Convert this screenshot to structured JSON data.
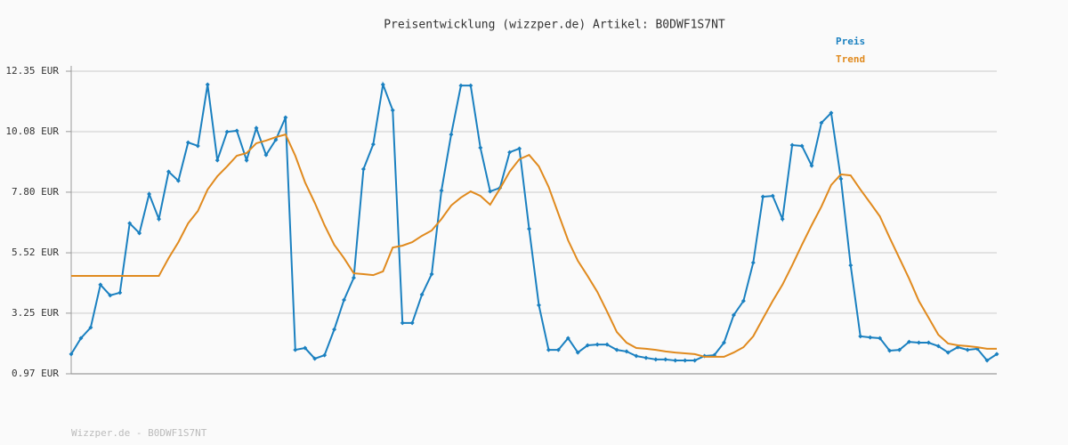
{
  "chart_data": {
    "type": "line",
    "title": "Preisentwicklung (wizzper.de) Artikel: B0DWF1S7NT",
    "footer": "Wizzper.de - B0DWF1S7NT",
    "categories": [
      null,
      null,
      null,
      null,
      null,
      null,
      null,
      null,
      null,
      null,
      null,
      null,
      null,
      null,
      null,
      null,
      null,
      null,
      null,
      null,
      null,
      null,
      null,
      null,
      null,
      null,
      null,
      null,
      null,
      null,
      null,
      null,
      null,
      null,
      null,
      null,
      null,
      null,
      null,
      null,
      null,
      null,
      null,
      null,
      null,
      null,
      null,
      null,
      null,
      null,
      null,
      null,
      null,
      null,
      null,
      null,
      null,
      null,
      null,
      null,
      null,
      null,
      null,
      null,
      null,
      null,
      null,
      null,
      null,
      null,
      null,
      null,
      null,
      null,
      null,
      null,
      null,
      null,
      null,
      null,
      null,
      null,
      null,
      null,
      null,
      null,
      null,
      null,
      null,
      null,
      null,
      null,
      null,
      null,
      null,
      null
    ],
    "ylim": [
      0.97,
      12.35
    ],
    "yticks": [
      {
        "value": 0.97,
        "label": "0.97 EUR"
      },
      {
        "value": 3.25,
        "label": "3.25 EUR"
      },
      {
        "value": 5.52,
        "label": "5.52 EUR"
      },
      {
        "value": 7.8,
        "label": "7.80 EUR"
      },
      {
        "value": 10.08,
        "label": "10.08 EUR"
      },
      {
        "value": 12.35,
        "label": "12.35 EUR"
      }
    ],
    "grid": true,
    "legend": "top-right",
    "series": [
      {
        "name": "Preis",
        "color": "#1a80c0",
        "markers": true,
        "values": [
          1.71,
          2.31,
          2.71,
          4.32,
          3.92,
          4.02,
          6.63,
          6.26,
          7.73,
          6.79,
          8.57,
          8.23,
          9.67,
          9.54,
          11.85,
          9.0,
          10.07,
          10.11,
          9.0,
          10.21,
          9.2,
          9.77,
          10.61,
          1.87,
          1.94,
          1.54,
          1.67,
          2.64,
          3.75,
          4.58,
          8.67,
          9.6,
          11.85,
          10.88,
          2.88,
          2.88,
          3.95,
          4.72,
          7.86,
          9.97,
          11.81,
          11.81,
          9.47,
          7.83,
          7.96,
          9.3,
          9.44,
          6.42,
          3.55,
          1.87,
          1.87,
          2.31,
          1.77,
          2.04,
          2.07,
          2.07,
          1.87,
          1.81,
          1.64,
          1.57,
          1.51,
          1.51,
          1.47,
          1.47,
          1.47,
          1.64,
          1.67,
          2.14,
          3.18,
          3.71,
          5.15,
          7.63,
          7.66,
          6.79,
          9.57,
          9.54,
          8.8,
          10.41,
          10.78,
          8.3,
          5.05,
          2.38,
          2.34,
          2.31,
          1.84,
          1.87,
          2.17,
          2.14,
          2.14,
          2.01,
          1.77,
          1.97,
          1.87,
          1.91,
          1.47,
          1.71
        ]
      },
      {
        "name": "Trend",
        "color": "#e08a1e",
        "markers": false,
        "values": [
          4.65,
          4.65,
          4.65,
          4.65,
          4.65,
          4.65,
          4.65,
          4.65,
          4.65,
          4.65,
          5.32,
          5.92,
          6.63,
          7.09,
          7.9,
          8.4,
          8.77,
          9.17,
          9.27,
          9.64,
          9.74,
          9.87,
          9.97,
          9.17,
          8.17,
          7.4,
          6.56,
          5.82,
          5.32,
          4.75,
          4.72,
          4.68,
          4.82,
          5.72,
          5.79,
          5.92,
          6.16,
          6.36,
          6.79,
          7.3,
          7.6,
          7.83,
          7.66,
          7.33,
          7.93,
          8.57,
          9.04,
          9.2,
          8.77,
          8.0,
          6.99,
          5.99,
          5.22,
          4.65,
          4.05,
          3.31,
          2.54,
          2.14,
          1.94,
          1.91,
          1.87,
          1.81,
          1.77,
          1.74,
          1.71,
          1.61,
          1.61,
          1.61,
          1.77,
          1.97,
          2.38,
          3.05,
          3.71,
          4.32,
          5.05,
          5.82,
          6.56,
          7.26,
          8.07,
          8.47,
          8.43,
          7.9,
          7.4,
          6.89,
          6.09,
          5.32,
          4.55,
          3.71,
          3.08,
          2.44,
          2.11,
          2.04,
          2.01,
          1.97,
          1.91,
          1.91
        ]
      }
    ]
  }
}
